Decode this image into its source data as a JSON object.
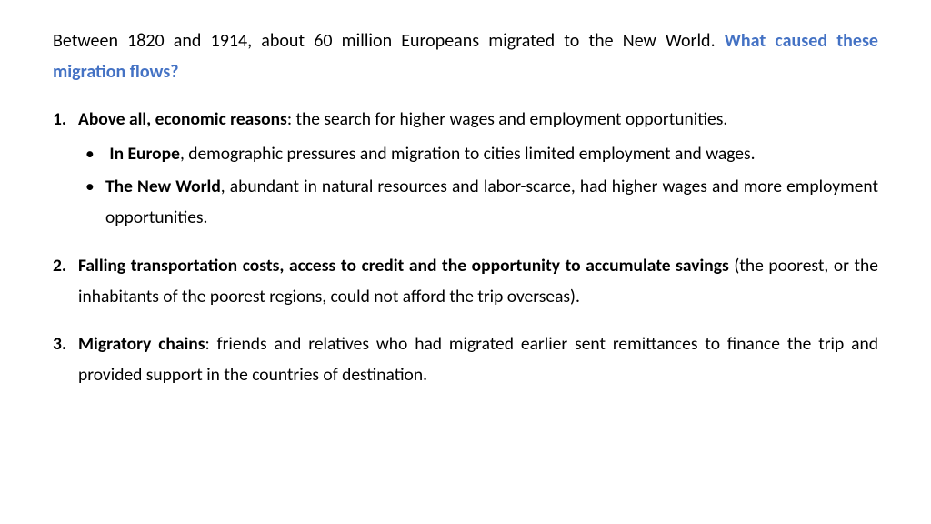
{
  "intro": {
    "plain": "Between 1820 and 1914, about 60 million Europeans migrated to the New World. ",
    "question": "What caused these migration flows?"
  },
  "items": [
    {
      "num": "1.",
      "lead_bold": "Above all, economic reasons",
      "lead_rest": ": the search for higher wages and employment opportunities.",
      "justify_lead": true,
      "sub": [
        {
          "indent": true,
          "bold": "In Europe",
          "rest": ", demographic pressures and migration to cities limited employment and wages."
        },
        {
          "indent": false,
          "bold": "The New World",
          "rest": ", abundant in natural resources and labor-scarce, had higher wages and more employment opportunities."
        }
      ]
    },
    {
      "num": "2.",
      "lead_bold": "Falling transportation costs, access to credit and the opportunity to accumulate savings",
      "lead_rest": " (the poorest, or the inhabitants of the poorest regions, could not afford the trip overseas).",
      "justify_lead": true,
      "sub": []
    },
    {
      "num": "3.",
      "lead_bold": "Migratory chains",
      "lead_rest": ": friends and relatives who had migrated earlier sent remittances to finance the trip and provided support in the countries of destination.",
      "justify_lead": false,
      "sub": []
    }
  ],
  "colors": {
    "text": "#000000",
    "accent": "#4472c4",
    "background": "#ffffff"
  }
}
